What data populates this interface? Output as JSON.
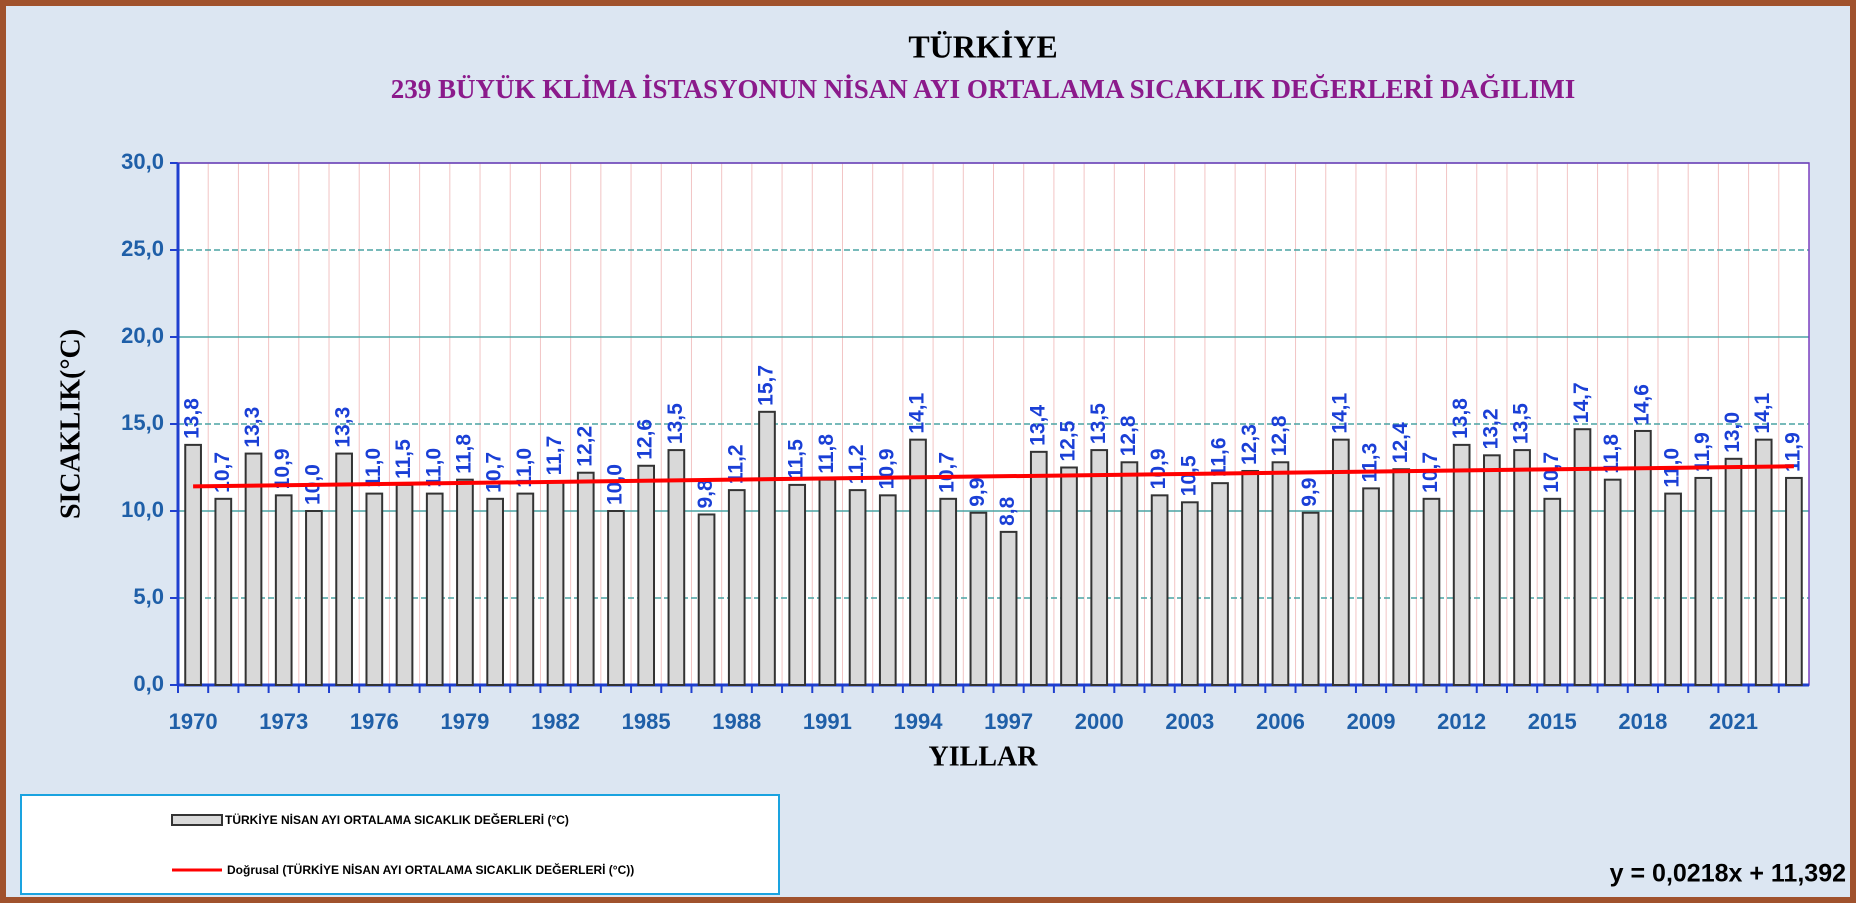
{
  "chart_data": {
    "type": "bar",
    "title": "TÜRKİYE",
    "subtitle": "239 BÜYÜK KLİMA İSTASYONUN  NİSAN  AYI ORTALAMA SICAKLIK DEĞERLERİ DAĞILIMI",
    "x_label": "YILLAR",
    "y_label": "SICAKLIK(°C)",
    "categories": [
      "1970",
      null,
      null,
      "1973",
      null,
      null,
      "1976",
      null,
      null,
      "1979",
      null,
      null,
      "1982",
      null,
      null,
      "1985",
      null,
      null,
      "1988",
      null,
      null,
      "1991",
      null,
      null,
      "1994",
      null,
      null,
      "1997",
      null,
      null,
      "2000",
      null,
      null,
      "2003",
      null,
      null,
      "2006",
      null,
      null,
      "2009",
      null,
      null,
      "2012",
      null,
      null,
      "2015",
      null,
      null,
      "2018",
      null,
      null,
      "2021",
      null,
      null
    ],
    "series": [
      {
        "name": "TÜRKİYE NİSAN AYI ORTALAMA SICAKLIK DEĞERLERİ (°C)",
        "color": "#d9d9d9",
        "values": [
          13.8,
          10.7,
          13.3,
          10.9,
          10.0,
          13.3,
          11.0,
          11.5,
          11.0,
          11.8,
          10.7,
          11.0,
          11.7,
          12.2,
          10.0,
          12.6,
          13.5,
          9.8,
          11.2,
          15.7,
          11.5,
          11.8,
          11.2,
          10.9,
          14.1,
          10.7,
          9.9,
          8.8,
          13.4,
          12.5,
          13.5,
          12.8,
          10.9,
          10.5,
          11.6,
          12.3,
          12.8,
          9.9,
          14.1,
          11.3,
          12.4,
          10.7,
          13.8,
          13.2,
          13.5,
          10.7,
          14.7,
          11.8,
          14.6,
          11.0,
          11.9,
          13.0,
          14.1,
          11.9
        ],
        "value_labels": [
          "13,8",
          "10,7",
          "13,3",
          "10,9",
          "10,0",
          "13,3",
          "11,0",
          "11,5",
          "11,0",
          "11,8",
          "10,7",
          "11,0",
          "11,7",
          "12,2",
          "10,0",
          "12,6",
          "13,5",
          "9,8",
          "11,2",
          "15,7",
          "11,5",
          "11,8",
          "11,2",
          "10,9",
          "14,1",
          "10,7",
          "9,9",
          "8,8",
          "13,4",
          "12,5",
          "13,5",
          "12,8",
          "10,9",
          "10,5",
          "11,6",
          "12,3",
          "12,8",
          "9,9",
          "14,1",
          "11,3",
          "12,4",
          "10,7",
          "13,8",
          "13,2",
          "13,5",
          "10,7",
          "14,7",
          "11,8",
          "14,6",
          "11,0",
          "11,9",
          "13,0",
          "14,1",
          "11,9"
        ]
      }
    ],
    "trendline": {
      "name": "Doğrusal (TÜRKİYE NİSAN AYI ORTALAMA SICAKLIK DEĞERLERİ (°C))",
      "color": "#ff0000",
      "slope": 0.0218,
      "intercept": 11.392,
      "label": "y = 0,0218x + 11,392"
    },
    "ylim": [
      0,
      30
    ],
    "yticks": [
      {
        "value": 0,
        "label": "0,0"
      },
      {
        "value": 5,
        "label": "5,0"
      },
      {
        "value": 10,
        "label": "10,0"
      },
      {
        "value": 15,
        "label": "15,0"
      },
      {
        "value": 20,
        "label": "20,0"
      },
      {
        "value": 25,
        "label": "25,0"
      },
      {
        "value": 30,
        "label": "30,0"
      }
    ],
    "grid": true
  }
}
